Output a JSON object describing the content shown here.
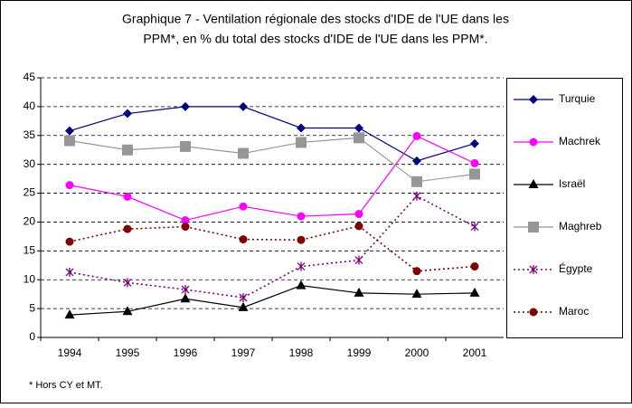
{
  "chart_data": {
    "type": "line",
    "title_lines": [
      "Graphique 7 - Ventilation régionale des stocks d'IDE de l'UE dans les",
      "PPM*, en % du total des stocks d'IDE de l'UE dans les PPM*."
    ],
    "categories": [
      "1994",
      "1995",
      "1996",
      "1997",
      "1998",
      "1999",
      "2000",
      "2001"
    ],
    "series": [
      {
        "name": "Turquie",
        "color": "#000080",
        "marker": "diamond",
        "dash": "solid",
        "values": [
          35.8,
          38.8,
          40,
          40,
          36.3,
          36.3,
          30.6,
          33.6
        ]
      },
      {
        "name": "Machrek",
        "color": "#ff00ff",
        "marker": "circle",
        "dash": "solid",
        "values": [
          26.4,
          24.4,
          20.3,
          22.7,
          21,
          21.4,
          34.9,
          30.2
        ]
      },
      {
        "name": "Israël",
        "color": "#000000",
        "marker": "triangle",
        "dash": "solid",
        "values": [
          3.9,
          4.5,
          6.7,
          5.2,
          9,
          7.7,
          7.5,
          7.7
        ]
      },
      {
        "name": "Maghreb",
        "color": "#969696",
        "marker": "square",
        "dash": "solid",
        "values": [
          34.1,
          32.5,
          33.1,
          31.9,
          33.8,
          34.6,
          27,
          28.3
        ]
      },
      {
        "name": "Égypte",
        "color": "#800080",
        "marker": "star",
        "dash": "dotted",
        "values": [
          11.3,
          9.5,
          8.3,
          6.9,
          12.3,
          13.4,
          24.5,
          19.2
        ]
      },
      {
        "name": "Maroc",
        "color": "#800000",
        "marker": "circle",
        "dash": "dotted",
        "values": [
          16.6,
          18.8,
          19.2,
          17,
          16.9,
          19.3,
          11.5,
          12.3
        ]
      }
    ],
    "ylim": [
      0,
      45
    ],
    "yticks": [
      0,
      5,
      10,
      15,
      20,
      25,
      30,
      35,
      40,
      45
    ],
    "grid": true,
    "footnote": "* Hors CY et MT."
  }
}
